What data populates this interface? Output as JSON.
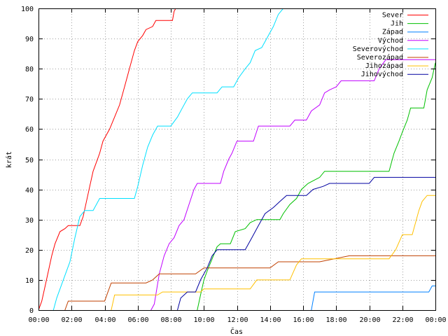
{
  "chart_data": {
    "type": "line",
    "title": "",
    "xlabel": "Čas",
    "ylabel": "krát",
    "xlim": [
      0,
      24
    ],
    "ylim": [
      0,
      100
    ],
    "x_tick_labels": [
      "00:00",
      "02:00",
      "04:00",
      "06:00",
      "08:00",
      "10:00",
      "12:00",
      "14:00",
      "16:00",
      "18:00",
      "20:00",
      "22:00",
      "00:00"
    ],
    "y_tick_labels": [
      "0",
      "10",
      "20",
      "30",
      "40",
      "50",
      "60",
      "70",
      "80",
      "90",
      "100"
    ],
    "grid": true,
    "legend_position": "top-right",
    "x_unit": "hours",
    "series": [
      {
        "name": "Sever",
        "color": "#ff0000",
        "points": [
          [
            0,
            0
          ],
          [
            0.2,
            3
          ],
          [
            0.4,
            8
          ],
          [
            0.6,
            13
          ],
          [
            0.8,
            18
          ],
          [
            1.0,
            22
          ],
          [
            1.3,
            26
          ],
          [
            1.6,
            27
          ],
          [
            1.8,
            28
          ],
          [
            2.5,
            28
          ],
          [
            2.7,
            31
          ],
          [
            2.9,
            36
          ],
          [
            3.1,
            41
          ],
          [
            3.3,
            46
          ],
          [
            3.5,
            49
          ],
          [
            3.7,
            52
          ],
          [
            3.9,
            56
          ],
          [
            4.3,
            60
          ],
          [
            4.6,
            64
          ],
          [
            4.9,
            68
          ],
          [
            5.2,
            74
          ],
          [
            5.5,
            80
          ],
          [
            5.8,
            86
          ],
          [
            6.0,
            89
          ],
          [
            6.3,
            91
          ],
          [
            6.5,
            93
          ],
          [
            6.9,
            94
          ],
          [
            7.1,
            96
          ],
          [
            8.1,
            96
          ],
          [
            8.2,
            99
          ],
          [
            8.3,
            100
          ]
        ]
      },
      {
        "name": "Jih",
        "color": "#00c000",
        "points": [
          [
            9.6,
            0
          ],
          [
            9.8,
            5
          ],
          [
            10.0,
            10
          ],
          [
            10.2,
            13
          ],
          [
            10.5,
            17
          ],
          [
            10.8,
            21
          ],
          [
            11.0,
            22
          ],
          [
            11.6,
            22
          ],
          [
            11.9,
            26
          ],
          [
            12.5,
            27
          ],
          [
            12.8,
            29
          ],
          [
            13.2,
            30
          ],
          [
            14.6,
            30
          ],
          [
            14.8,
            32
          ],
          [
            15.2,
            35
          ],
          [
            15.6,
            37
          ],
          [
            15.9,
            40
          ],
          [
            16.3,
            42
          ],
          [
            17.0,
            44
          ],
          [
            17.3,
            46
          ],
          [
            21.2,
            46
          ],
          [
            21.5,
            52
          ],
          [
            21.8,
            56
          ],
          [
            22.0,
            59
          ],
          [
            22.3,
            63
          ],
          [
            22.5,
            67
          ],
          [
            23.3,
            67
          ],
          [
            23.5,
            73
          ],
          [
            23.8,
            77
          ],
          [
            24.0,
            82
          ]
        ]
      },
      {
        "name": "Západ",
        "color": "#0080ff",
        "points": [
          [
            16.5,
            0
          ],
          [
            16.7,
            6
          ],
          [
            23.6,
            6
          ],
          [
            23.8,
            8
          ],
          [
            24.0,
            8
          ]
        ]
      },
      {
        "name": "Východ",
        "color": "#c000ff",
        "points": [
          [
            6.8,
            0
          ],
          [
            7.0,
            2
          ],
          [
            7.3,
            12
          ],
          [
            7.6,
            18
          ],
          [
            7.9,
            22
          ],
          [
            8.2,
            24
          ],
          [
            8.5,
            28
          ],
          [
            8.8,
            30
          ],
          [
            9.1,
            35
          ],
          [
            9.4,
            40
          ],
          [
            9.6,
            42
          ],
          [
            11.0,
            42
          ],
          [
            11.2,
            46
          ],
          [
            11.5,
            50
          ],
          [
            11.7,
            52
          ],
          [
            12.0,
            56
          ],
          [
            13.0,
            56
          ],
          [
            13.3,
            61
          ],
          [
            15.2,
            61
          ],
          [
            15.5,
            63
          ],
          [
            16.2,
            63
          ],
          [
            16.5,
            66
          ],
          [
            17.0,
            68
          ],
          [
            17.3,
            72
          ],
          [
            17.6,
            73
          ],
          [
            18.0,
            74
          ],
          [
            18.3,
            76
          ],
          [
            20.3,
            76
          ],
          [
            20.6,
            80
          ],
          [
            21.0,
            83
          ],
          [
            22.5,
            83
          ],
          [
            23.0,
            83
          ],
          [
            24.0,
            83
          ]
        ]
      },
      {
        "name": "Severovýchod",
        "color": "#00e0ff",
        "points": [
          [
            0.9,
            0
          ],
          [
            1.1,
            4
          ],
          [
            1.5,
            10
          ],
          [
            1.9,
            16
          ],
          [
            2.2,
            24
          ],
          [
            2.5,
            31
          ],
          [
            2.8,
            33
          ],
          [
            3.3,
            33
          ],
          [
            3.7,
            37
          ],
          [
            5.8,
            37
          ],
          [
            6.0,
            41
          ],
          [
            6.3,
            48
          ],
          [
            6.6,
            54
          ],
          [
            6.9,
            58
          ],
          [
            7.2,
            61
          ],
          [
            8.0,
            61
          ],
          [
            8.4,
            64
          ],
          [
            8.7,
            67
          ],
          [
            9.0,
            70
          ],
          [
            9.3,
            72
          ],
          [
            10.8,
            72
          ],
          [
            11.1,
            74
          ],
          [
            11.8,
            74
          ],
          [
            12.1,
            77
          ],
          [
            12.5,
            80
          ],
          [
            12.8,
            82
          ],
          [
            13.1,
            86
          ],
          [
            13.5,
            87
          ],
          [
            13.9,
            91
          ],
          [
            14.2,
            94
          ],
          [
            14.5,
            98
          ],
          [
            14.8,
            100
          ]
        ]
      },
      {
        "name": "Severozápad",
        "color": "#c04000",
        "points": [
          [
            1.6,
            0
          ],
          [
            1.8,
            3
          ],
          [
            4.0,
            3
          ],
          [
            4.2,
            6
          ],
          [
            4.4,
            9
          ],
          [
            6.0,
            9
          ],
          [
            6.5,
            9
          ],
          [
            6.9,
            10
          ],
          [
            7.3,
            12
          ],
          [
            9.5,
            12
          ],
          [
            10.0,
            14
          ],
          [
            12.0,
            14
          ],
          [
            14.0,
            14
          ],
          [
            14.5,
            16
          ],
          [
            17.0,
            16
          ],
          [
            18.8,
            18
          ],
          [
            24.0,
            18
          ]
        ]
      },
      {
        "name": "Jihozápad",
        "color": "#ffc000",
        "points": [
          [
            4.4,
            0
          ],
          [
            4.6,
            5
          ],
          [
            7.2,
            5
          ],
          [
            7.5,
            6
          ],
          [
            9.8,
            6
          ],
          [
            10.0,
            7
          ],
          [
            12.8,
            7
          ],
          [
            13.2,
            10
          ],
          [
            15.2,
            10
          ],
          [
            15.6,
            15
          ],
          [
            15.9,
            17
          ],
          [
            21.2,
            17
          ],
          [
            21.6,
            20
          ],
          [
            22.0,
            25
          ],
          [
            22.6,
            25
          ],
          [
            23.0,
            33
          ],
          [
            23.2,
            36
          ],
          [
            23.5,
            38
          ],
          [
            24.0,
            38
          ]
        ]
      },
      {
        "name": "Jihovýchod",
        "color": "#0000a0",
        "points": [
          [
            8.4,
            0
          ],
          [
            8.6,
            4
          ],
          [
            9.0,
            6
          ],
          [
            9.5,
            6
          ],
          [
            9.8,
            10
          ],
          [
            10.2,
            14
          ],
          [
            10.5,
            18
          ],
          [
            10.8,
            20
          ],
          [
            12.5,
            20
          ],
          [
            12.9,
            24
          ],
          [
            13.3,
            28
          ],
          [
            13.7,
            32
          ],
          [
            14.2,
            34
          ],
          [
            14.6,
            36
          ],
          [
            15.0,
            38
          ],
          [
            16.2,
            38
          ],
          [
            16.6,
            40
          ],
          [
            17.2,
            41
          ],
          [
            17.6,
            42
          ],
          [
            20.0,
            42
          ],
          [
            20.3,
            44
          ],
          [
            24.0,
            44
          ]
        ]
      }
    ]
  }
}
